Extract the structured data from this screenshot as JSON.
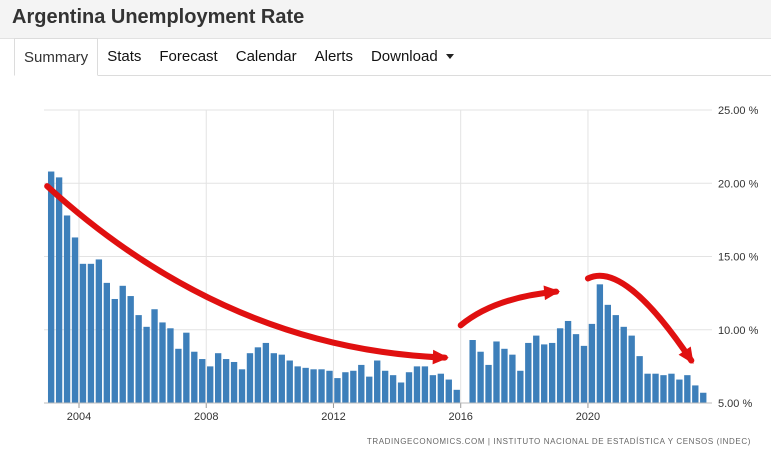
{
  "header": {
    "title": "Argentina Unemployment Rate"
  },
  "tabs": [
    {
      "label": "Summary",
      "active": true
    },
    {
      "label": "Stats"
    },
    {
      "label": "Forecast"
    },
    {
      "label": "Calendar"
    },
    {
      "label": "Alerts"
    },
    {
      "label": "Download",
      "dropdown": true
    }
  ],
  "source": "TRADINGECONOMICS.COM | INSTITUTO NACIONAL DE ESTADÍSTICA Y CENSOS (INDEC)",
  "chart_data": {
    "type": "bar",
    "title": "",
    "xlabel": "",
    "ylabel": "",
    "bar_color": "#3d7fba",
    "annotation_color": "#e01010",
    "y_range": [
      5,
      25
    ],
    "y_ticks": [
      {
        "value": 25,
        "label": "25.00 %"
      },
      {
        "value": 20,
        "label": "20.00 %"
      },
      {
        "value": 15,
        "label": "15.00 %"
      },
      {
        "value": 10,
        "label": "10.00 %"
      },
      {
        "value": 5,
        "label": "5.00 %"
      }
    ],
    "x_ticks": [
      "2004",
      "2008",
      "2012",
      "2016",
      "2020"
    ],
    "x_range_years": [
      2002.9,
      2023.9
    ],
    "grid": true,
    "series": [
      {
        "frequency": "quarterly",
        "start": "2003 Q1",
        "values": [
          20.8,
          20.4,
          17.8,
          16.3,
          14.5,
          14.5,
          14.8,
          13.2,
          12.1,
          13.0,
          12.3,
          11.0,
          10.2,
          11.4,
          10.5,
          10.1,
          8.7,
          9.8,
          8.5,
          8.0,
          7.5,
          8.4,
          8.0,
          7.8,
          7.3,
          8.4,
          8.8,
          9.1,
          8.4,
          8.3,
          7.9,
          7.5,
          7.4,
          7.3,
          7.3,
          7.2,
          6.7,
          7.1,
          7.2,
          7.6,
          6.8,
          7.9,
          7.2,
          6.9,
          6.4,
          7.1,
          7.5,
          7.5,
          6.9,
          7.0,
          6.6,
          5.9
        ]
      },
      {
        "frequency": "quarterly",
        "start": "2016 Q2",
        "values": [
          9.3,
          8.5,
          7.6,
          9.2,
          8.7,
          8.3,
          7.2,
          9.1,
          9.6,
          9.0,
          9.1,
          10.1,
          10.6,
          9.7,
          8.9,
          10.4,
          13.1,
          11.7,
          11.0,
          10.2,
          9.6,
          8.2,
          7.0,
          7.0,
          6.9,
          7.0,
          6.6,
          6.9,
          6.2,
          5.7
        ]
      }
    ],
    "annotations": [
      {
        "shape": "arrow",
        "from": [
          "2003 Q1",
          19.8
        ],
        "to": [
          "2015 Q3",
          8.1
        ],
        "trend": "down"
      },
      {
        "shape": "arrow",
        "from": [
          "2016 Q1",
          10.3
        ],
        "to": [
          "2019 Q1",
          12.6
        ],
        "trend": "up"
      },
      {
        "shape": "arrow",
        "from": [
          "2020 Q1",
          13.5
        ],
        "to": [
          "2023 Q2",
          7.9
        ],
        "trend": "down"
      }
    ]
  }
}
